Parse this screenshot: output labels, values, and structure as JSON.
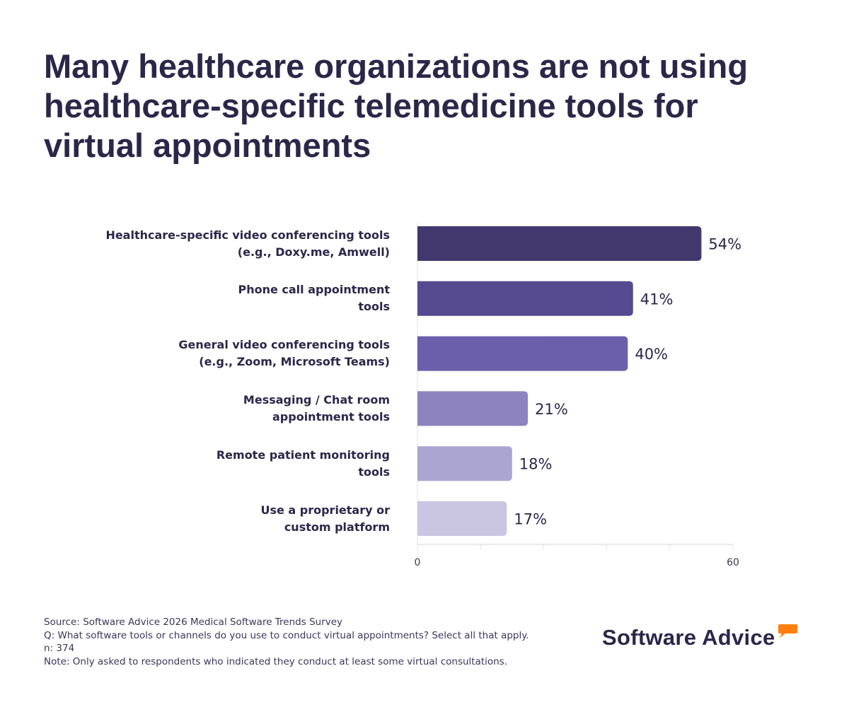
{
  "chart_data": {
    "type": "bar",
    "orientation": "horizontal",
    "title": "Many healthcare organizations are not using healthcare-specific telemedicine tools for virtual appointments",
    "categories": [
      [
        "Healthcare-specific video conferencing tools",
        "(e.g., Doxy.me, Amwell)"
      ],
      [
        "Phone call appointment",
        "tools"
      ],
      [
        "General video conferencing tools",
        "(e.g., Zoom, Microsoft Teams)"
      ],
      [
        "Messaging / Chat room",
        "appointment tools"
      ],
      [
        "Remote patient monitoring",
        "tools"
      ],
      [
        "Use a proprietary or",
        "custom platform"
      ]
    ],
    "values": [
      54,
      41,
      40,
      21,
      18,
      17
    ],
    "value_labels": [
      "54%",
      "41%",
      "40%",
      "21%",
      "18%",
      "17%"
    ],
    "colors": [
      "#42386e",
      "#554a90",
      "#6b5fab",
      "#8d84bf",
      "#aba5d1",
      "#cac6e2"
    ],
    "xlim": [
      0,
      60
    ],
    "x_tick_labels": [
      "0",
      "60"
    ],
    "x_ticks": [
      0,
      12,
      24,
      36,
      48,
      60
    ],
    "xlabel": "",
    "ylabel": "",
    "grid": false
  },
  "footer": {
    "source": "Source: Software Advice 2026 Medical Software Trends Survey",
    "question": "Q: What software tools or channels do you use to conduct virtual appointments? Select all that apply.",
    "n": "n: 374",
    "note": "Note: Only asked to respondents who indicated they conduct at least some virtual consultations."
  },
  "logo": {
    "text": "Software Advice",
    "accent": "#ff7f0e"
  }
}
